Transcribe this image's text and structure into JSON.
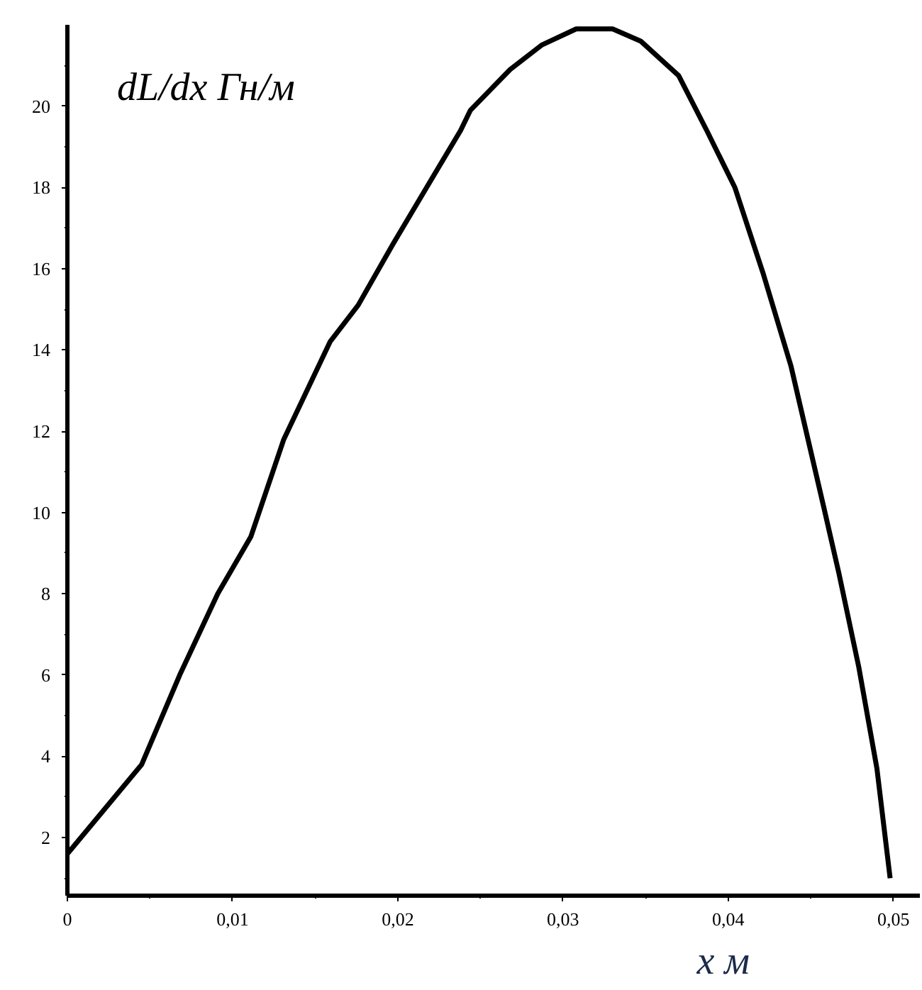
{
  "chart_data": {
    "type": "line",
    "xlabel": "x м",
    "ylabel": "dL/dx Гн/м",
    "x": [
      0,
      0.0045,
      0.0068,
      0.0091,
      0.0111,
      0.0131,
      0.0159,
      0.0176,
      0.0197,
      0.0216,
      0.0238,
      0.0244,
      0.0268,
      0.0287,
      0.0308,
      0.033,
      0.0347,
      0.037,
      0.0387,
      0.0404,
      0.0421,
      0.0438,
      0.0458,
      0.0467,
      0.0479,
      0.049,
      0.0498
    ],
    "series": [
      {
        "color": "#000000",
        "values": [
          1.6,
          3.8,
          6.0,
          8.0,
          9.4,
          11.8,
          14.2,
          15.1,
          16.6,
          17.9,
          19.4,
          19.9,
          20.9,
          21.5,
          21.9,
          21.9,
          21.6,
          20.75,
          19.4,
          18.0,
          15.9,
          13.6,
          10.1,
          8.5,
          6.2,
          3.7,
          1.0
        ]
      }
    ],
    "xlim": [
      0,
      0.0516
    ],
    "ylim": [
      0.57,
      22.0
    ],
    "xticks": [
      {
        "value": 0,
        "label": "0"
      },
      {
        "value": 0.01,
        "label": "0,01"
      },
      {
        "value": 0.02,
        "label": "0,02"
      },
      {
        "value": 0.03,
        "label": "0,03"
      },
      {
        "value": 0.04,
        "label": "0,04"
      },
      {
        "value": 0.05,
        "label": "0,05"
      }
    ],
    "yticks": [
      2,
      4,
      6,
      8,
      10,
      12,
      14,
      16,
      18,
      20
    ],
    "grid": false,
    "marker": "none",
    "line_style": "solid"
  }
}
